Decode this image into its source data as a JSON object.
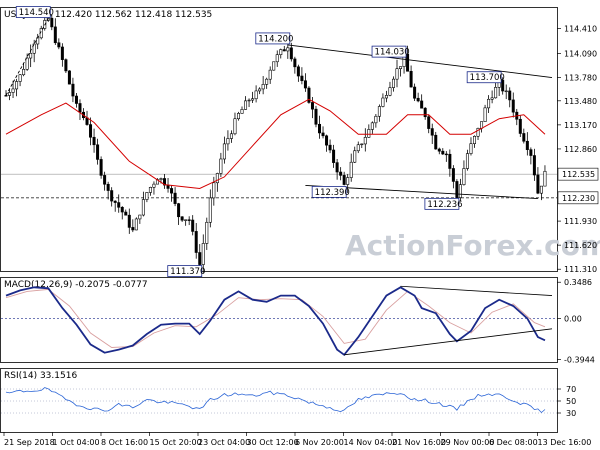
{
  "watermark": "ActionForex.com",
  "chart_data": [
    {
      "type": "candlestick",
      "title": "USDJPY,H4  112.420 112.562 112.418 112.535",
      "ylim": [
        111.3,
        114.65
      ],
      "y_ticks": [
        "114.410",
        "114.090",
        "113.780",
        "113.480",
        "113.170",
        "112.860",
        "112.535",
        "112.230",
        "111.930",
        "111.620",
        "111.310"
      ],
      "current_price": "112.535",
      "dashed_level": "112.230",
      "price_path": [
        [
          0,
          113.55
        ],
        [
          4,
          113.8
        ],
        [
          8,
          114.25
        ],
        [
          12,
          114.54
        ],
        [
          16,
          114.0
        ],
        [
          20,
          113.4
        ],
        [
          23,
          113.2
        ],
        [
          26,
          112.7
        ],
        [
          29,
          112.3
        ],
        [
          33,
          112.05
        ],
        [
          36,
          111.8
        ],
        [
          40,
          112.3
        ],
        [
          43,
          112.5
        ],
        [
          46,
          112.4
        ],
        [
          49,
          112.0
        ],
        [
          52,
          111.95
        ],
        [
          55,
          111.37
        ],
        [
          58,
          112.2
        ],
        [
          62,
          112.9
        ],
        [
          66,
          113.3
        ],
        [
          69,
          113.5
        ],
        [
          72,
          113.6
        ],
        [
          76,
          114.0
        ],
        [
          80,
          114.2
        ],
        [
          83,
          113.8
        ],
        [
          86,
          113.5
        ],
        [
          88,
          113.2
        ],
        [
          91,
          112.9
        ],
        [
          94,
          112.6
        ],
        [
          96,
          112.39
        ],
        [
          99,
          112.8
        ],
        [
          103,
          113.1
        ],
        [
          106,
          113.4
        ],
        [
          110,
          113.8
        ],
        [
          113,
          114.03
        ],
        [
          116,
          113.5
        ],
        [
          119,
          113.3
        ],
        [
          122,
          112.9
        ],
        [
          125,
          112.8
        ],
        [
          128,
          112.236
        ],
        [
          131,
          112.8
        ],
        [
          134,
          113.1
        ],
        [
          137,
          113.5
        ],
        [
          140,
          113.7
        ],
        [
          143,
          113.5
        ],
        [
          146,
          113.1
        ],
        [
          149,
          112.8
        ],
        [
          151,
          112.3
        ],
        [
          153,
          112.535
        ]
      ],
      "ma_path": [
        [
          0,
          113.05
        ],
        [
          10,
          113.3
        ],
        [
          17,
          113.45
        ],
        [
          25,
          113.2
        ],
        [
          35,
          112.7
        ],
        [
          45,
          112.4
        ],
        [
          55,
          112.35
        ],
        [
          62,
          112.5
        ],
        [
          70,
          112.9
        ],
        [
          78,
          113.3
        ],
        [
          86,
          113.5
        ],
        [
          92,
          113.35
        ],
        [
          100,
          113.05
        ],
        [
          108,
          113.05
        ],
        [
          114,
          113.3
        ],
        [
          120,
          113.3
        ],
        [
          126,
          113.05
        ],
        [
          132,
          113.05
        ],
        [
          140,
          113.25
        ],
        [
          147,
          113.3
        ],
        [
          153,
          113.05
        ]
      ],
      "annotations": [
        {
          "text": "114.540",
          "x": 12,
          "y": 114.54,
          "pos": "above-left"
        },
        {
          "text": "114.200",
          "x": 80,
          "y": 114.2,
          "pos": "above-left"
        },
        {
          "text": "114.030",
          "x": 113,
          "y": 114.03,
          "pos": "above-left"
        },
        {
          "text": "113.700",
          "x": 140,
          "y": 113.7,
          "pos": "above-left"
        },
        {
          "text": "112.390",
          "x": 96,
          "y": 112.39,
          "pos": "below-left"
        },
        {
          "text": "112.236",
          "x": 128,
          "y": 112.236,
          "pos": "below-left"
        },
        {
          "text": "111.370",
          "x": 55,
          "y": 111.37,
          "pos": "below-left"
        }
      ],
      "trendlines": [
        {
          "from": [
            0,
            113.55
          ],
          "to": [
            12,
            114.54
          ],
          "style": "dashed"
        },
        {
          "from": [
            80,
            114.2
          ],
          "to": [
            155,
            113.78
          ],
          "style": "solid"
        },
        {
          "from": [
            85,
            112.39
          ],
          "to": [
            151,
            112.22
          ],
          "style": "solid"
        }
      ]
    },
    {
      "type": "line",
      "title": "MACD(12,26,9) -0.2075 -0.0777",
      "ylim": [
        -0.4,
        0.37
      ],
      "y_ticks": [
        "0.3486",
        "0.00",
        "-0.3944"
      ],
      "zero_line": 0,
      "macd_path": [
        [
          0,
          0.22
        ],
        [
          4,
          0.27
        ],
        [
          8,
          0.3
        ],
        [
          12,
          0.29
        ],
        [
          16,
          0.1
        ],
        [
          20,
          -0.06
        ],
        [
          24,
          -0.25
        ],
        [
          28,
          -0.33
        ],
        [
          32,
          -0.3
        ],
        [
          36,
          -0.26
        ],
        [
          40,
          -0.15
        ],
        [
          44,
          -0.06
        ],
        [
          48,
          -0.05
        ],
        [
          52,
          -0.05
        ],
        [
          55,
          -0.15
        ],
        [
          58,
          -0.02
        ],
        [
          62,
          0.18
        ],
        [
          66,
          0.26
        ],
        [
          70,
          0.18
        ],
        [
          74,
          0.16
        ],
        [
          78,
          0.22
        ],
        [
          82,
          0.22
        ],
        [
          86,
          0.12
        ],
        [
          90,
          -0.05
        ],
        [
          94,
          -0.3
        ],
        [
          96,
          -0.35
        ],
        [
          100,
          -0.18
        ],
        [
          104,
          0.02
        ],
        [
          108,
          0.22
        ],
        [
          112,
          0.3
        ],
        [
          116,
          0.22
        ],
        [
          118,
          0.1
        ],
        [
          122,
          0.05
        ],
        [
          126,
          -0.15
        ],
        [
          128,
          -0.22
        ],
        [
          132,
          -0.12
        ],
        [
          136,
          0.1
        ],
        [
          140,
          0.18
        ],
        [
          144,
          0.12
        ],
        [
          148,
          0.0
        ],
        [
          151,
          -0.18
        ],
        [
          153,
          -0.21
        ]
      ],
      "signal_path": [
        [
          0,
          0.2
        ],
        [
          6,
          0.26
        ],
        [
          12,
          0.28
        ],
        [
          18,
          0.12
        ],
        [
          24,
          -0.14
        ],
        [
          30,
          -0.28
        ],
        [
          36,
          -0.27
        ],
        [
          42,
          -0.14
        ],
        [
          48,
          -0.07
        ],
        [
          54,
          -0.08
        ],
        [
          60,
          0.04
        ],
        [
          66,
          0.2
        ],
        [
          72,
          0.18
        ],
        [
          78,
          0.19
        ],
        [
          84,
          0.18
        ],
        [
          90,
          0.02
        ],
        [
          96,
          -0.24
        ],
        [
          102,
          -0.2
        ],
        [
          108,
          0.08
        ],
        [
          114,
          0.26
        ],
        [
          120,
          0.12
        ],
        [
          126,
          -0.04
        ],
        [
          132,
          -0.14
        ],
        [
          138,
          0.06
        ],
        [
          144,
          0.14
        ],
        [
          150,
          -0.04
        ],
        [
          153,
          -0.08
        ]
      ],
      "trendlines": [
        {
          "from": [
            96,
            -0.35
          ],
          "to": [
            155,
            -0.1
          ]
        },
        {
          "from": [
            112,
            0.31
          ],
          "to": [
            155,
            0.22
          ]
        }
      ]
    },
    {
      "type": "line",
      "title": "RSI(14) 33.1516",
      "ylim": [
        0,
        100
      ],
      "y_ticks": [
        "70",
        "50",
        "30"
      ],
      "rsi_path": [
        [
          0,
          62
        ],
        [
          4,
          66
        ],
        [
          8,
          68
        ],
        [
          12,
          70
        ],
        [
          16,
          55
        ],
        [
          20,
          45
        ],
        [
          24,
          38
        ],
        [
          28,
          34
        ],
        [
          32,
          44
        ],
        [
          36,
          40
        ],
        [
          40,
          52
        ],
        [
          44,
          48
        ],
        [
          48,
          46
        ],
        [
          52,
          42
        ],
        [
          55,
          35
        ],
        [
          58,
          52
        ],
        [
          62,
          60
        ],
        [
          66,
          62
        ],
        [
          70,
          58
        ],
        [
          74,
          64
        ],
        [
          78,
          62
        ],
        [
          82,
          56
        ],
        [
          86,
          48
        ],
        [
          90,
          42
        ],
        [
          94,
          36
        ],
        [
          96,
          33
        ],
        [
          100,
          52
        ],
        [
          104,
          58
        ],
        [
          108,
          62
        ],
        [
          112,
          64
        ],
        [
          116,
          52
        ],
        [
          120,
          50
        ],
        [
          124,
          44
        ],
        [
          128,
          36
        ],
        [
          132,
          54
        ],
        [
          136,
          62
        ],
        [
          140,
          60
        ],
        [
          144,
          52
        ],
        [
          148,
          42
        ],
        [
          151,
          34
        ],
        [
          153,
          33
        ]
      ],
      "x_tick_labels": [
        "21 Sep 2018",
        "1 Oct 04:00",
        "8 Oct 16:00",
        "15 Oct 20:00",
        "23 Oct 04:00",
        "30 Oct 12:00",
        "6 Nov 20:00",
        "14 Nov 04:00",
        "21 Nov 16:00",
        "29 Nov 00:00",
        "6 Dec 08:00",
        "13 Dec 16:00"
      ]
    }
  ]
}
